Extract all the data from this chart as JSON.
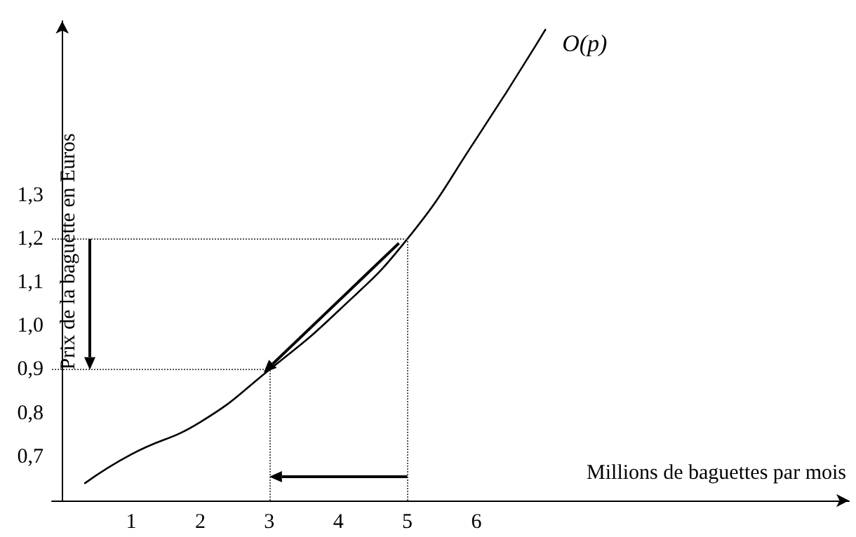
{
  "chart_data": {
    "type": "line",
    "xlabel": "Millions de baguettes par mois",
    "ylabel": "Prix de la baguette en Euros",
    "xlim": [
      -0.15,
      11.4
    ],
    "ylim": [
      0.6,
      1.7
    ],
    "xticks": [
      1,
      2,
      3,
      4,
      5,
      6
    ],
    "yticks": [
      {
        "value": 0.7,
        "label": "0,7"
      },
      {
        "value": 0.8,
        "label": "0,8"
      },
      {
        "value": 0.9,
        "label": "0,9"
      },
      {
        "value": 1.0,
        "label": "1,0"
      },
      {
        "value": 1.1,
        "label": "1,1"
      },
      {
        "value": 1.2,
        "label": "1,2"
      },
      {
        "value": 1.3,
        "label": "1,3"
      }
    ],
    "series": [
      {
        "name": "O(p)",
        "color": "#000000",
        "x": [
          0.33,
          1,
          2,
          3,
          4,
          5,
          6,
          7.0
        ],
        "values": [
          0.64,
          0.706,
          0.78,
          0.9,
          1.035,
          1.2,
          1.43,
          1.68
        ]
      }
    ],
    "ref_lines": [
      {
        "axis": "y",
        "value": 1.2,
        "line_style": "dotted",
        "color": "#555555"
      },
      {
        "axis": "x",
        "value": 5,
        "line_style": "dotted",
        "color": "#555555"
      },
      {
        "axis": "y",
        "value": 0.9,
        "line_style": "dotted",
        "color": "#555555"
      },
      {
        "axis": "x",
        "value": 3,
        "line_style": "dotted",
        "color": "#555555"
      }
    ],
    "grid": false,
    "legend": false,
    "marker": "none",
    "line_style": "solid"
  }
}
